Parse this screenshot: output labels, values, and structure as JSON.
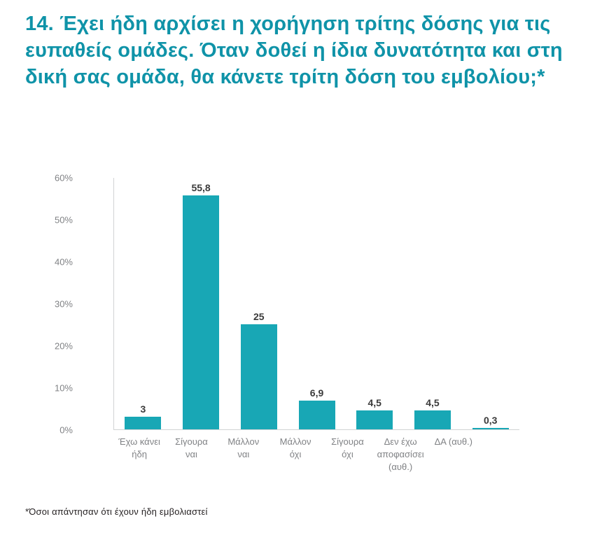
{
  "title": "14. Έχει ήδη αρχίσει η χορήγηση τρίτης δόσης για τις ευπαθείς ομάδες. Όταν δοθεί η ίδια δυνατότητα και στη δική σας ομάδα, θα κάνετε τρίτη δόση του εμβολίου;*",
  "footnote": "*Όσοι απάντησαν ότι έχουν ήδη εμβολιαστεί",
  "colors": {
    "title": "#0f93a8",
    "bar": "#18a7b5",
    "axis_text": "#808285",
    "axis_line": "#d1d3d4",
    "value_text": "#3a3a3a",
    "footnote": "#231f20"
  },
  "chart_data": {
    "type": "bar",
    "title": "",
    "xlabel": "",
    "ylabel": "",
    "categories": [
      "Έχω κάνει ήδη",
      "Σίγουρα ναι",
      "Μάλλον ναι",
      "Μάλλον όχι",
      "Σίγουρα όχι",
      "Δεν έχω αποφασίσει (αυθ.)",
      "ΔΑ (αυθ.)"
    ],
    "values": [
      3,
      55.8,
      25,
      6.9,
      4.5,
      4.5,
      0.3
    ],
    "value_labels": [
      "3",
      "55,8",
      "25",
      "6,9",
      "4,5",
      "4,5",
      "0,3"
    ],
    "ylim": [
      0,
      60
    ],
    "ytick_step": 10,
    "ytick_labels": [
      "0%",
      "10%",
      "20%",
      "30%",
      "40%",
      "50%",
      "60%"
    ],
    "grid": false,
    "legend": false
  }
}
